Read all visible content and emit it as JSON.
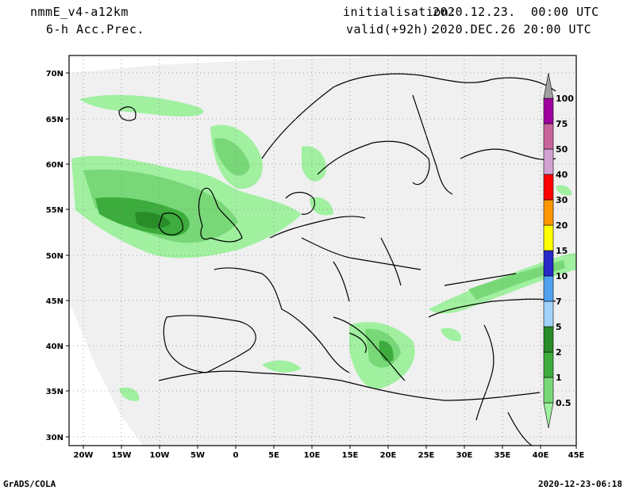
{
  "header": {
    "model": "nmmE_v4-a12km",
    "field": "6-h Acc.Prec.",
    "init_label": "initialisation:",
    "init_value": "2020.12.23.  00:00 UTC",
    "valid_label": "valid(+92h):",
    "valid_value": "2020.DEC.26 20:00 UTC"
  },
  "map": {
    "lat_labels": [
      "70N",
      "65N",
      "60N",
      "55N",
      "50N",
      "45N",
      "40N",
      "35N",
      "30N"
    ],
    "lon_labels": [
      "20W",
      "15W",
      "10W",
      "5W",
      "0",
      "5E",
      "10E",
      "15E",
      "20E",
      "25E",
      "30E",
      "35E",
      "40E",
      "45E"
    ],
    "lat_range": [
      29.5,
      72
    ],
    "lon_range": [
      -21.5,
      45
    ],
    "grid": true
  },
  "legend": {
    "levels": [
      "0.5",
      "1",
      "2",
      "5",
      "7",
      "10",
      "15",
      "20",
      "30",
      "40",
      "50",
      "75",
      "100"
    ],
    "colors": [
      "#a0f0a0",
      "#78d878",
      "#3cac3c",
      "#288c28",
      "#a0d2fa",
      "#50a0f0",
      "#2828c8",
      "#ffff00",
      "#ff9600",
      "#ff0000",
      "#d2a0d2",
      "#c8649b",
      "#a000a0",
      "#a0a0a0"
    ],
    "ocean_color": "#f0f0f0",
    "outside_color": "#ffffff"
  },
  "footer": {
    "left": "GrADS/COLA",
    "right": "2020-12-23-06:18"
  }
}
